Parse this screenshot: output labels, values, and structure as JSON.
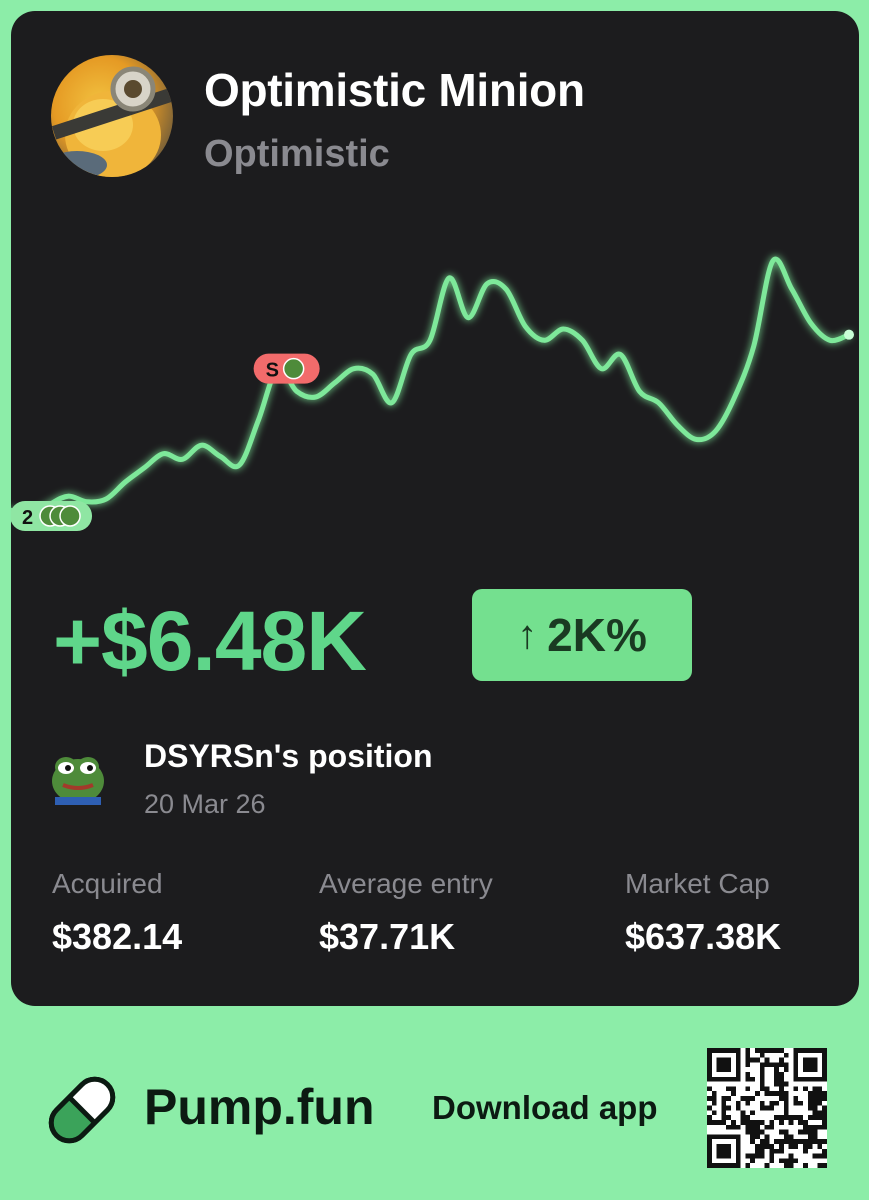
{
  "token": {
    "name": "Optimistic Minion",
    "ticker": "Optimistic"
  },
  "chart_data": {
    "type": "line",
    "series": [
      {
        "values": [
          30,
          28,
          32,
          35,
          33,
          34,
          40,
          45,
          50,
          48,
          53,
          49,
          46,
          62,
          80,
          72,
          70,
          75,
          80,
          78,
          68,
          85,
          90,
          112,
          98,
          110,
          108,
          95,
          90,
          94,
          90,
          80,
          85,
          72,
          68,
          60,
          55,
          58,
          70,
          88,
          118,
          108,
          96,
          90,
          92
        ]
      }
    ],
    "markers": [
      {
        "label": "2",
        "kind": "buy",
        "index": 1
      },
      {
        "label": "S",
        "kind": "sell",
        "index": 14
      }
    ]
  },
  "pnl": {
    "value": "+$6.48K",
    "percent_arrow": "↑",
    "percent": "2K%"
  },
  "position": {
    "title": "DSYRSn's position",
    "date": "20 Mar 26"
  },
  "stats": {
    "acquired_label": "Acquired",
    "acquired_value": "$382.14",
    "avg_entry_label": "Average entry",
    "avg_entry_value": "$37.71K",
    "market_cap_label": "Market Cap",
    "market_cap_value": "$637.38K"
  },
  "footer": {
    "brand": "Pump.fun",
    "download": "Download app"
  },
  "colors": {
    "background": "#8ceda8",
    "card": "#1c1c1e",
    "line": "#7ee89a",
    "pnl": "#5fd68a",
    "badge": "#74e08f",
    "sell_marker": "#f26b6b"
  }
}
